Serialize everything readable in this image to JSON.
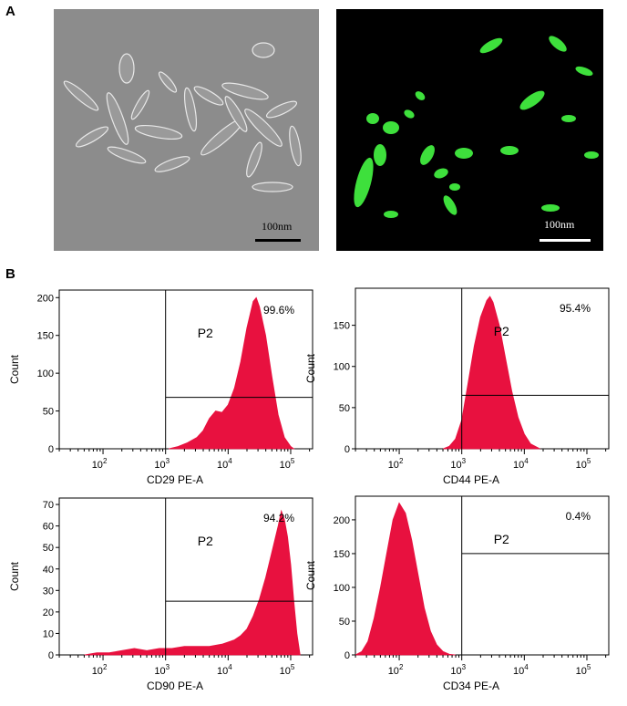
{
  "panel_labels": {
    "a": "A",
    "b": "B"
  },
  "micrographs": {
    "brightfield_scale": "100nm",
    "fluorescence_scale": "100nm"
  },
  "colors": {
    "histogram_fill": "#e8113f",
    "fluorescence": "#3ee03c",
    "phase_background": "#8c8c8c"
  },
  "chart_data": [
    {
      "type": "area",
      "xlabel": "CD29  PE-A",
      "ylabel": "Count",
      "x_scale": "log",
      "x_ticks": [
        "10^2",
        "10^3",
        "10^4",
        "10^5"
      ],
      "ylim": [
        0,
        210
      ],
      "y_ticks": [
        0,
        50,
        100,
        150,
        200
      ],
      "gate_label": "P2",
      "gate_percent": "99.6%",
      "gate_x_start": 1000,
      "gate_y_level": 68,
      "peak_log10": 4.45,
      "peak_count": 200,
      "histogram": [
        [
          3.05,
          0
        ],
        [
          3.2,
          3
        ],
        [
          3.35,
          8
        ],
        [
          3.5,
          15
        ],
        [
          3.6,
          24
        ],
        [
          3.7,
          40
        ],
        [
          3.8,
          50
        ],
        [
          3.9,
          48
        ],
        [
          4.0,
          58
        ],
        [
          4.1,
          80
        ],
        [
          4.2,
          115
        ],
        [
          4.3,
          160
        ],
        [
          4.4,
          195
        ],
        [
          4.45,
          200
        ],
        [
          4.5,
          188
        ],
        [
          4.6,
          150
        ],
        [
          4.7,
          95
        ],
        [
          4.8,
          45
        ],
        [
          4.9,
          15
        ],
        [
          5.0,
          3
        ],
        [
          5.05,
          0
        ]
      ]
    },
    {
      "type": "area",
      "xlabel": "CD44  PE-A",
      "ylabel": "Count",
      "x_scale": "log",
      "x_ticks": [
        "10^2",
        "10^3",
        "10^4",
        "10^5"
      ],
      "ylim": [
        0,
        195
      ],
      "y_ticks": [
        0,
        50,
        100,
        150
      ],
      "gate_label": "P2",
      "gate_percent": "95.4%",
      "gate_x_start": 1000,
      "gate_y_level": 65,
      "peak_log10": 3.45,
      "peak_count": 185,
      "histogram": [
        [
          2.7,
          0
        ],
        [
          2.8,
          3
        ],
        [
          2.9,
          12
        ],
        [
          3.0,
          35
        ],
        [
          3.1,
          80
        ],
        [
          3.2,
          125
        ],
        [
          3.3,
          160
        ],
        [
          3.4,
          180
        ],
        [
          3.45,
          185
        ],
        [
          3.5,
          178
        ],
        [
          3.6,
          150
        ],
        [
          3.7,
          110
        ],
        [
          3.8,
          70
        ],
        [
          3.9,
          38
        ],
        [
          4.0,
          18
        ],
        [
          4.1,
          6
        ],
        [
          4.25,
          0
        ]
      ]
    },
    {
      "type": "area",
      "xlabel": "CD90  PE-A",
      "ylabel": "Count",
      "x_scale": "log",
      "x_ticks": [
        "10^2",
        "10^3",
        "10^4",
        "10^5"
      ],
      "ylim": [
        0,
        73
      ],
      "y_ticks": [
        0,
        10,
        20,
        30,
        40,
        50,
        60,
        70
      ],
      "gate_label": "P2",
      "gate_percent": "94.2%",
      "gate_x_start": 1000,
      "gate_y_level": 25,
      "peak_log10": 4.85,
      "peak_count": 67,
      "histogram": [
        [
          1.7,
          0
        ],
        [
          1.9,
          1
        ],
        [
          2.1,
          1
        ],
        [
          2.3,
          2
        ],
        [
          2.5,
          3
        ],
        [
          2.7,
          2
        ],
        [
          2.9,
          3
        ],
        [
          3.1,
          3
        ],
        [
          3.3,
          4
        ],
        [
          3.5,
          4
        ],
        [
          3.7,
          4
        ],
        [
          3.9,
          5
        ],
        [
          4.1,
          7
        ],
        [
          4.2,
          9
        ],
        [
          4.3,
          12
        ],
        [
          4.4,
          18
        ],
        [
          4.5,
          26
        ],
        [
          4.6,
          36
        ],
        [
          4.7,
          48
        ],
        [
          4.8,
          60
        ],
        [
          4.85,
          67
        ],
        [
          4.9,
          63
        ],
        [
          4.95,
          55
        ],
        [
          5.0,
          42
        ],
        [
          5.05,
          25
        ],
        [
          5.1,
          10
        ],
        [
          5.15,
          0
        ]
      ]
    },
    {
      "type": "area",
      "xlabel": "CD34  PE-A",
      "ylabel": "Count",
      "x_scale": "log",
      "x_ticks": [
        "10^2",
        "10^3",
        "10^4",
        "10^5"
      ],
      "ylim": [
        0,
        235
      ],
      "y_ticks": [
        0,
        50,
        100,
        150,
        200
      ],
      "gate_label": "P2",
      "gate_percent": "0.4%",
      "gate_x_start": 1000,
      "gate_y_level": 150,
      "peak_log10": 2.0,
      "peak_count": 225,
      "histogram": [
        [
          1.3,
          0
        ],
        [
          1.4,
          5
        ],
        [
          1.5,
          20
        ],
        [
          1.6,
          55
        ],
        [
          1.7,
          100
        ],
        [
          1.8,
          150
        ],
        [
          1.9,
          200
        ],
        [
          2.0,
          225
        ],
        [
          2.1,
          210
        ],
        [
          2.2,
          170
        ],
        [
          2.3,
          120
        ],
        [
          2.4,
          70
        ],
        [
          2.5,
          35
        ],
        [
          2.6,
          15
        ],
        [
          2.7,
          5
        ],
        [
          2.8,
          1
        ],
        [
          2.9,
          0
        ]
      ]
    }
  ]
}
